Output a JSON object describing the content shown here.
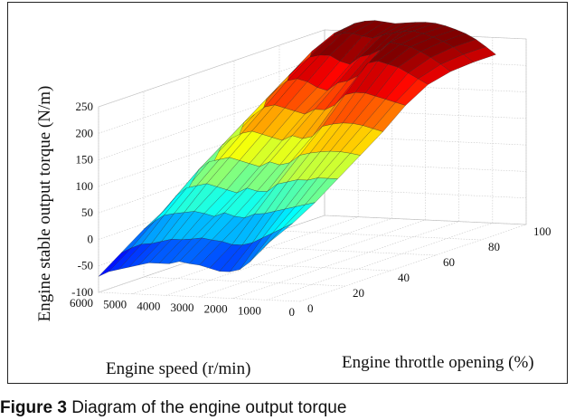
{
  "caption": {
    "label": "Figure 3",
    "text": "Diagram of the engine output torque"
  },
  "chart_data": {
    "type": "surface",
    "title": "",
    "xlabel": "Engine speed (r/min)",
    "ylabel": "Engine throttle opening (%)",
    "zlabel": "Engine stable output torque (N/m)",
    "x_ticks": [
      0,
      1000,
      2000,
      3000,
      4000,
      5000,
      6000
    ],
    "y_ticks": [
      0,
      20,
      40,
      60,
      80,
      100
    ],
    "z_ticks": [
      -100,
      -50,
      0,
      50,
      100,
      150,
      200,
      250
    ],
    "xlim": [
      0,
      6000
    ],
    "ylim": [
      0,
      100
    ],
    "zlim": [
      -100,
      250
    ],
    "colormap": "jet",
    "grid": true,
    "speed_rpm": [
      6000,
      5700,
      5400,
      5100,
      4800,
      4500,
      4200,
      3900,
      3600,
      3300,
      3000,
      2700,
      2400,
      2100,
      1800,
      1500,
      1200,
      900
    ],
    "throttle_pct": [
      0,
      10,
      20,
      30,
      40,
      50,
      60,
      70,
      80,
      90,
      100
    ],
    "torque_Nm": [
      [
        -70,
        -60,
        -55,
        -50,
        -45,
        -40,
        -40,
        -40,
        -35,
        -38,
        -40,
        -45,
        -50,
        -50,
        -45,
        -30,
        -10,
        10
      ],
      [
        -40,
        -30,
        -22,
        -20,
        -15,
        -10,
        -10,
        -8,
        -5,
        -8,
        -10,
        -15,
        -15,
        -10,
        0,
        10,
        20,
        30
      ],
      [
        -10,
        5,
        18,
        22,
        25,
        28,
        25,
        20,
        28,
        22,
        20,
        28,
        30,
        35,
        40,
        45,
        50,
        55
      ],
      [
        15,
        40,
        55,
        60,
        65,
        60,
        55,
        50,
        60,
        55,
        55,
        70,
        75,
        80,
        80,
        85,
        85,
        85
      ],
      [
        40,
        75,
        90,
        95,
        100,
        95,
        90,
        85,
        95,
        90,
        95,
        110,
        115,
        118,
        120,
        120,
        118,
        115
      ],
      [
        65,
        105,
        120,
        130,
        135,
        130,
        125,
        120,
        130,
        125,
        130,
        150,
        155,
        158,
        158,
        155,
        150,
        145
      ],
      [
        85,
        135,
        150,
        165,
        170,
        165,
        160,
        155,
        165,
        165,
        175,
        195,
        200,
        200,
        195,
        190,
        185,
        180
      ],
      [
        110,
        165,
        185,
        200,
        205,
        200,
        190,
        185,
        200,
        205,
        215,
        240,
        245,
        240,
        235,
        225,
        215,
        205
      ],
      [
        140,
        195,
        215,
        230,
        235,
        235,
        225,
        220,
        235,
        240,
        250,
        265,
        262,
        258,
        250,
        240,
        228,
        215
      ],
      [
        170,
        225,
        240,
        255,
        262,
        262,
        258,
        255,
        262,
        266,
        270,
        272,
        268,
        262,
        255,
        245,
        232,
        218
      ],
      [
        200,
        245,
        255,
        265,
        270,
        272,
        270,
        268,
        270,
        272,
        273,
        272,
        268,
        262,
        255,
        245,
        232,
        218
      ]
    ]
  }
}
